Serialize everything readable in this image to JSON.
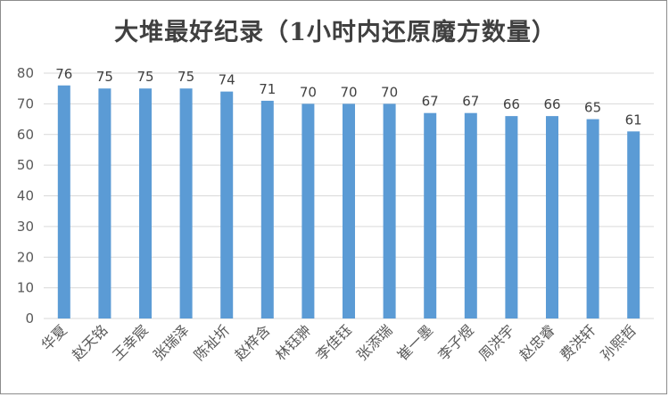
{
  "chart_data": {
    "type": "bar",
    "title": "大堆最好纪录（1小时内还原魔方数量）",
    "categories": [
      "华夏",
      "赵天铭",
      "王幸宸",
      "张瑞泽",
      "陈祉圻",
      "赵梓含",
      "林钰翀",
      "李佳钰",
      "张添瑞",
      "崔一墨",
      "李子煜",
      "周洪宇",
      "赵忠睿",
      "费洪轩",
      "孙熙哲"
    ],
    "values": [
      76,
      75,
      75,
      75,
      74,
      71,
      70,
      70,
      70,
      67,
      67,
      66,
      66,
      65,
      61
    ],
    "ylim": [
      0,
      80
    ],
    "yticks": [
      0,
      10,
      20,
      30,
      40,
      50,
      60,
      70,
      80
    ],
    "grid": true,
    "data_labels": true,
    "xlabel": "",
    "ylabel": "",
    "bar_color": "#5b9bd5"
  }
}
